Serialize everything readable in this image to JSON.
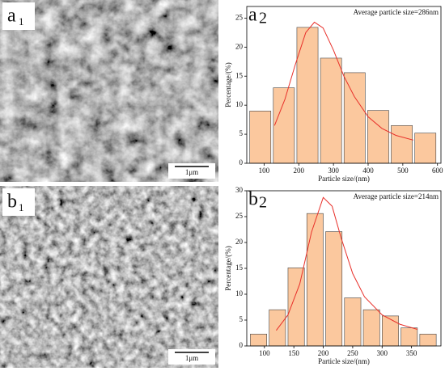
{
  "images": [
    {
      "label": "a",
      "label_sub": "1",
      "scale_bar": "1μm"
    },
    {
      "label": "b",
      "label_sub": "1",
      "scale_bar": "1μm"
    }
  ],
  "chart_data": [
    {
      "type": "histogram",
      "panel_label": "a",
      "panel_sub": "2",
      "annotation": "Average particle size=286nm",
      "x_label": "Particle size/(nm)",
      "y_label": "Percentage/(%)",
      "bins": [
        55,
        123,
        191,
        259,
        327,
        395,
        463,
        531,
        599
      ],
      "values": [
        9,
        13,
        23.4,
        18.1,
        15.6,
        9.1,
        6.5,
        5.2
      ],
      "color": "#fbc89e",
      "fit": {
        "color": "#e8302a",
        "x": [
          130,
          160,
          190,
          220,
          245,
          270,
          300,
          330,
          360,
          400,
          440,
          480,
          530
        ],
        "values": [
          6.5,
          11,
          17,
          22.5,
          24.3,
          23.3,
          19.5,
          15,
          11.5,
          8,
          6,
          4.8,
          4
        ]
      },
      "xlim": [
        50,
        610
      ],
      "ylim": [
        0,
        27
      ],
      "xticks": [
        100,
        200,
        300,
        400,
        500,
        600
      ],
      "yticks": [
        0,
        5,
        10,
        15,
        20,
        25
      ]
    },
    {
      "type": "histogram",
      "panel_label": "b",
      "panel_sub": "2",
      "annotation": "Average particle size=214nm",
      "x_label": "Particle size/(nm)",
      "y_label": "Percentage/(%)",
      "bins": [
        74,
        106,
        138,
        170,
        202,
        234,
        266,
        298,
        330,
        362,
        394
      ],
      "values": [
        2.3,
        7,
        15.1,
        25.6,
        22.1,
        9.3,
        7,
        5.8,
        3.5,
        2.3
      ],
      "color": "#fbc89e",
      "fit": {
        "color": "#e8302a",
        "x": [
          120,
          140,
          160,
          180,
          200,
          215,
          230,
          250,
          270,
          300,
          330,
          360
        ],
        "values": [
          3,
          6,
          12,
          22,
          28.7,
          27,
          21,
          14,
          9.5,
          6,
          4.2,
          3.2
        ]
      },
      "xlim": [
        70,
        400
      ],
      "ylim": [
        0,
        30
      ],
      "xticks": [
        100,
        150,
        200,
        250,
        300,
        350
      ],
      "yticks": [
        0,
        5,
        10,
        15,
        20,
        25,
        30
      ]
    }
  ]
}
